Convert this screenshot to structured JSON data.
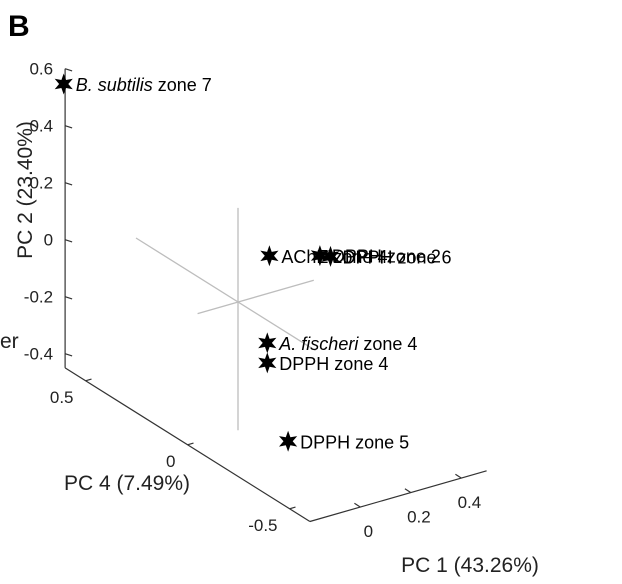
{
  "panel_label": "B",
  "edge_text": "er",
  "chart_data": {
    "type": "scatter",
    "projection": "3d",
    "marker": "star",
    "xlabel": "PC 1 (43.26%)",
    "ylabel": "PC 2 (23.40%)",
    "zlabel": "PC 4 (7.49%)",
    "x_ticks": [
      "0",
      "0.2",
      "0.4"
    ],
    "y_ticks": [
      "-0.4",
      "-0.2",
      "0",
      "0.2",
      "0.4",
      "0.6"
    ],
    "z_ticks": [
      "-0.5",
      "0",
      "0.5"
    ],
    "points": [
      {
        "label_pre": "",
        "label_italic": "B. subtilis",
        "label_post": " zone 7",
        "pc1": -0.27,
        "pc2": 0.6,
        "pc4": 0.52
      },
      {
        "label_pre": "AChE zone 4",
        "label_italic": "",
        "label_post": "",
        "pc1": 0.1,
        "pc2": 0.15,
        "pc4": -0.03
      },
      {
        "label_pre": "DPPH zone 2",
        "label_italic": "",
        "label_post": "",
        "pc1": 0.3,
        "pc2": 0.1,
        "pc4": -0.03
      },
      {
        "label_pre": "DPPH zone 6",
        "label_italic": "",
        "label_post": "",
        "pc1": 0.35,
        "pc2": 0.08,
        "pc4": -0.02
      },
      {
        "label_pre": "",
        "label_italic": "A. fischeri",
        "label_post": " zone 4",
        "pc1": 0.1,
        "pc2": -0.16,
        "pc4": -0.02
      },
      {
        "label_pre": "DPPH zone 4",
        "label_italic": "",
        "label_post": "",
        "pc1": 0.1,
        "pc2": -0.23,
        "pc4": -0.02
      },
      {
        "label_pre": "DPPH zone 5",
        "label_italic": "",
        "label_post": "",
        "pc1": 0.15,
        "pc2": -0.5,
        "pc4": -0.06
      }
    ]
  }
}
